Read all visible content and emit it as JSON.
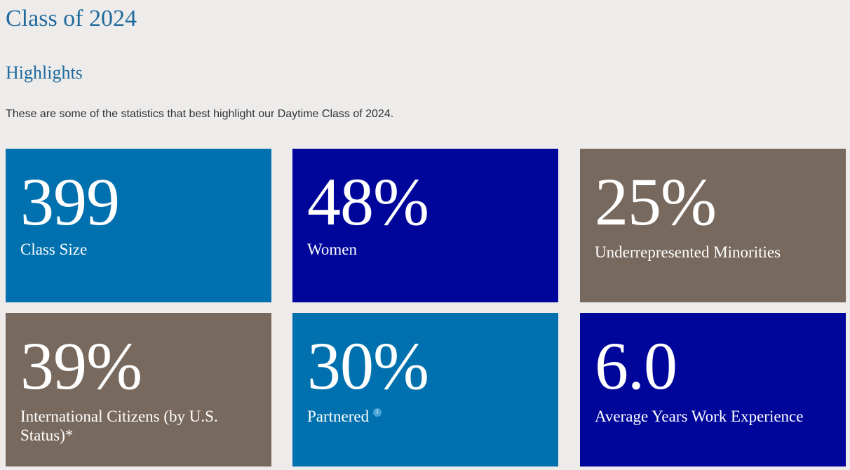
{
  "page": {
    "title": "Class of 2024",
    "section_title": "Highlights",
    "intro": "These are some of the statistics that best highlight our Daytime Class of 2024."
  },
  "colors": {
    "background": "#eeeceb",
    "heading": "#1f6a9e",
    "tile_blue": "#0071ae",
    "tile_navy": "#00069a",
    "tile_taupe": "#78695e"
  },
  "stats": [
    {
      "value": "399",
      "label": "Class Size",
      "color": "#0071ae"
    },
    {
      "value": "48%",
      "label": "Women",
      "color": "#00069a"
    },
    {
      "value": "25%",
      "label": "Underrepresented Minorities",
      "color": "#78695e"
    },
    {
      "value": "39%",
      "label": "International Citizens (by U.S. Status)*",
      "color": "#78695e"
    },
    {
      "value": "30%",
      "label": "Partnered",
      "color": "#0071ae",
      "info_icon": "info-icon",
      "info_glyph": "i"
    },
    {
      "value": "6.0",
      "label": "Average Years Work Experience",
      "color": "#00069a"
    }
  ]
}
